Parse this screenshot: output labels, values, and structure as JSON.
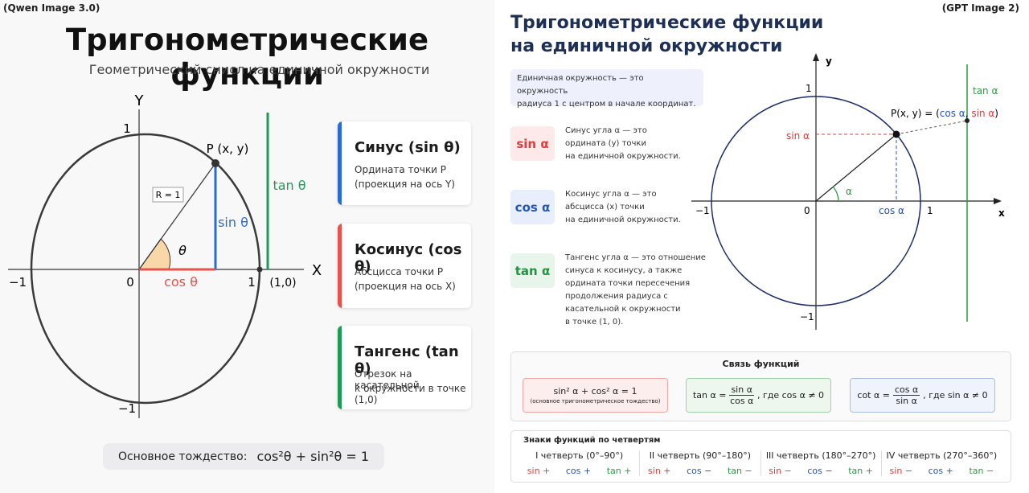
{
  "left": {
    "tag": "(Qwen Image 3.0)",
    "title": "Тригонометрические функции",
    "subtitle": "Геометрический снисл на единичной окружности",
    "diagram": {
      "y_axis": "Y",
      "x_axis": "X",
      "y_top": "1",
      "y_bottom": "−1",
      "x_left": "−1",
      "x_right": "1",
      "origin": "0",
      "point": "P (x, y)",
      "radius": "R = 1",
      "angle": "θ",
      "sin": "sin θ",
      "cos": "cos θ",
      "tan": "tan θ",
      "tangent_point": "(1,0)"
    },
    "cards": [
      {
        "title": "Синус (sin θ)",
        "lines": [
          "Ордината точки P",
          "(проекция на ось Y)"
        ]
      },
      {
        "title": "Косинус (cos θ)",
        "lines": [
          "Абсцисса точки P",
          "(проекция на ось X)"
        ]
      },
      {
        "title": "Тангенс (tan θ)",
        "lines": [
          "Отрезок на касательной",
          "к окружности в точке (1,0)"
        ]
      }
    ],
    "identity": {
      "label": "Основное тождество:",
      "formula": "cos²θ + sin²θ = 1"
    }
  },
  "right": {
    "tag": "(GPT Image 2)",
    "title": [
      "Тригонометрические функции",
      "на единичной окружности"
    ],
    "intro": [
      "Единичная окружность — это окружность",
      "радиуса 1 с центром в начале координат."
    ],
    "items": [
      {
        "badge": "sin α",
        "lines": [
          "Синус угла α — это",
          "ордината (y) точки",
          "на единичной окружности."
        ]
      },
      {
        "badge": "cos α",
        "lines": [
          "Косинус угла α — это",
          "абсцисса (x) точки",
          "на единичной окружности."
        ]
      },
      {
        "badge": "tan α",
        "lines": [
          "Тангенс угла α — это отношение",
          "синуса к косинусу, а также",
          "ордината точки пересечения",
          "продолжения радиуса с",
          "касательной к окружности",
          "в точке (1, 0)."
        ]
      }
    ],
    "diagram": {
      "y_axis": "y",
      "x_axis": "x",
      "y_top": "1",
      "y_bottom": "−1",
      "x_left": "−1",
      "x_right": "1",
      "origin": "0",
      "point": [
        "P(x, y) = (",
        "cos α",
        ", ",
        "sin α",
        ")"
      ],
      "sin": "sin α",
      "cos": "cos α",
      "tan": "tan α",
      "angle": "α"
    },
    "relations": {
      "title": "Связь функций",
      "identity": "sin² α + cos² α = 1",
      "identity_note": "(основное тригонометрическое тождество)",
      "tan": {
        "lhs": "tan α =",
        "num": "sin α",
        "den": "cos α",
        "cond": ",  где cos α ≠ 0"
      },
      "cot": {
        "lhs": "cot α =",
        "num": "cos α",
        "den": "sin α",
        "cond": ",  где sin α ≠ 0"
      }
    },
    "quadrants": {
      "title": "Знаки функций по четвертям",
      "items": [
        {
          "name": "I четверть (0°–90°)",
          "signs": [
            "sin +",
            "cos +",
            "tan +"
          ]
        },
        {
          "name": "II четверть (90°–180°)",
          "signs": [
            "sin +",
            "cos −",
            "tan −"
          ]
        },
        {
          "name": "III четверть (180°–270°)",
          "signs": [
            "sin −",
            "cos −",
            "tan +"
          ]
        },
        {
          "name": "IV четверть (270°–360°)",
          "signs": [
            "sin −",
            "cos +",
            "tan −"
          ]
        }
      ]
    }
  }
}
